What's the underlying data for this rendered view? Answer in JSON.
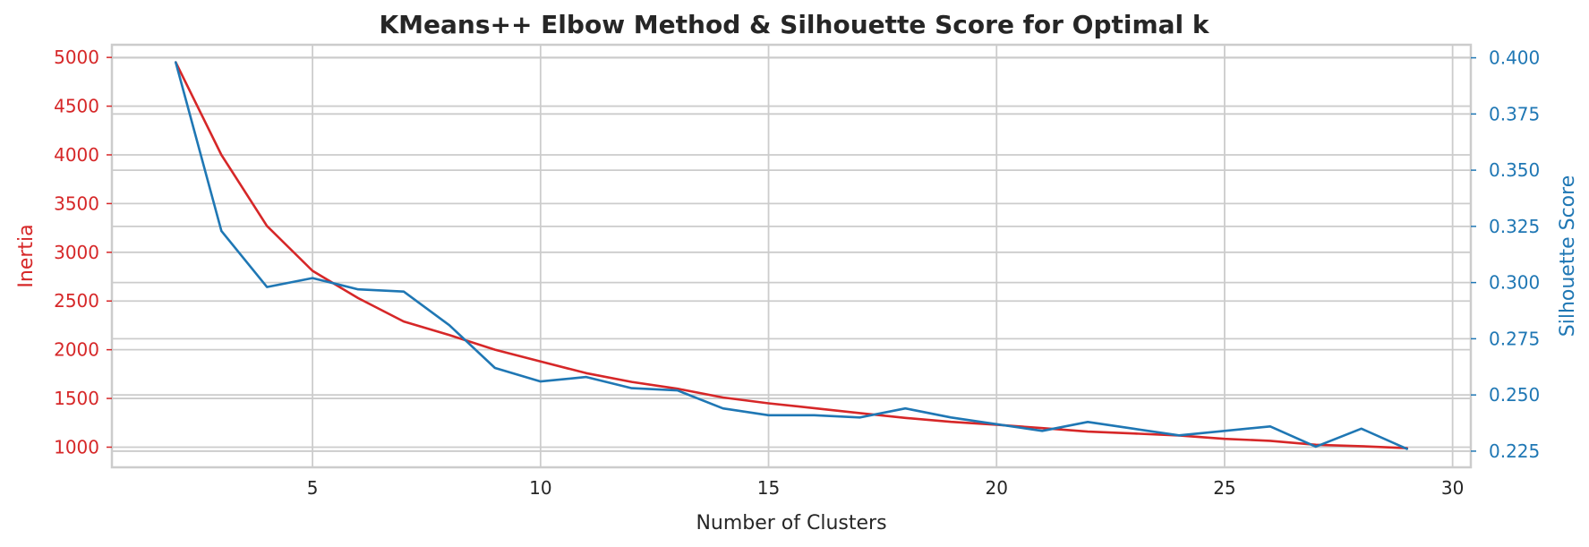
{
  "chart_data": {
    "type": "line",
    "title": "KMeans++ Elbow Method & Silhouette Score for Optimal k",
    "xlabel": "Number of Clusters",
    "ylabel_left": "Inertia",
    "ylabel_right": "Silhouette Score",
    "xlim": [
      0.6,
      30.4
    ],
    "ylim_left": [
      793,
      5130
    ],
    "ylim_right": [
      0.2178,
      0.4058
    ],
    "x_ticks": [
      5,
      10,
      15,
      20,
      25,
      30
    ],
    "y_left_ticks": [
      1000,
      1500,
      2000,
      2500,
      3000,
      3500,
      4000,
      4500,
      5000
    ],
    "y_right_ticks": [
      "0.225",
      "0.250",
      "0.275",
      "0.300",
      "0.325",
      "0.350",
      "0.375",
      "0.400"
    ],
    "grid": true,
    "colors": {
      "inertia": "#d62728",
      "silhouette": "#1f77b4",
      "grid": "#cccccc",
      "text": "#262626"
    },
    "x": [
      2,
      3,
      4,
      5,
      6,
      7,
      8,
      9,
      10,
      11,
      12,
      13,
      14,
      15,
      16,
      17,
      18,
      19,
      20,
      21,
      22,
      23,
      24,
      25,
      26,
      27,
      28,
      29
    ],
    "series": [
      {
        "axis": "left",
        "values": [
          4950,
          4000,
          3270,
          2810,
          2530,
          2290,
          2150,
          2000,
          1880,
          1760,
          1670,
          1600,
          1510,
          1450,
          1400,
          1350,
          1300,
          1260,
          1230,
          1195,
          1160,
          1140,
          1120,
          1085,
          1065,
          1025,
          1010,
          990
        ]
      },
      {
        "axis": "right",
        "values": [
          0.398,
          0.323,
          0.298,
          0.302,
          0.297,
          0.296,
          0.281,
          0.262,
          0.256,
          0.258,
          0.253,
          0.252,
          0.244,
          0.241,
          0.241,
          0.24,
          0.244,
          0.24,
          0.237,
          0.234,
          0.238,
          0.235,
          0.232,
          0.234,
          0.236,
          0.227,
          0.235,
          0.226
        ]
      }
    ]
  }
}
